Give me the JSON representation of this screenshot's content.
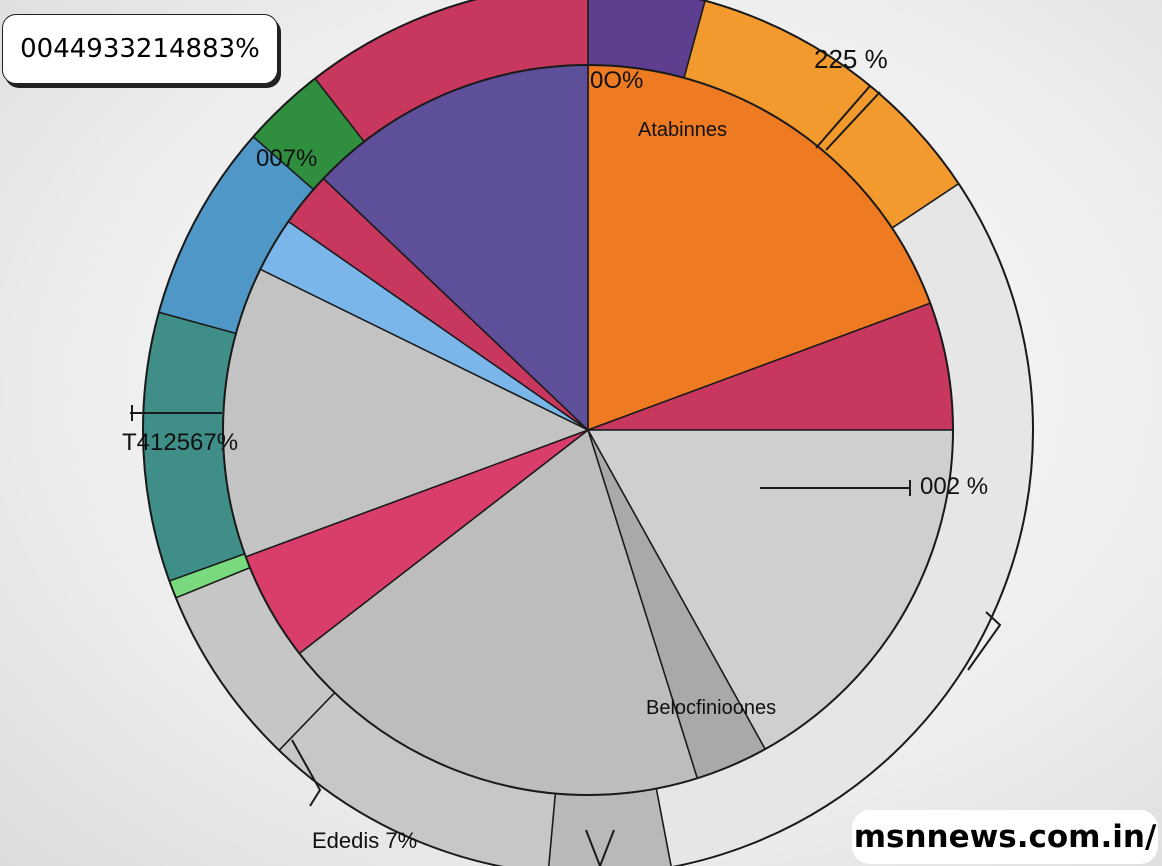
{
  "badge_text": "0044933214883%",
  "watermark": "msnnews.com.in/",
  "chart_data": {
    "type": "pie",
    "title": "",
    "rings": [
      {
        "name": "outer",
        "slices": [
          {
            "value": 4.6,
            "color": "#5e3f8f"
          },
          {
            "value": 12.4,
            "color": "#f29a2e"
          },
          {
            "value": 34.0,
            "color": "#e6e6e6"
          },
          {
            "value": 4.8,
            "color": "#b9b9b9"
          },
          {
            "value": 11.7,
            "color": "#c7c7c7"
          },
          {
            "value": 7.2,
            "color": "#c6c6c6"
          },
          {
            "value": 0.7,
            "color": "#79d97e"
          },
          {
            "value": 10.6,
            "color": "#3f8f88"
          },
          {
            "value": 7.8,
            "color": "#4f97c6"
          },
          {
            "value": 3.3,
            "color": "#2f8f3f"
          },
          {
            "value": 11.4,
            "color": "#c8375e"
          }
        ]
      },
      {
        "name": "inner",
        "slices": [
          {
            "value": 2.4,
            "color": "#ee7a22"
          },
          {
            "value": 0.7,
            "color": "#c8375e"
          },
          {
            "value": 2.1,
            "color": "#cfcfcf"
          },
          {
            "value": 0.4,
            "color": "#a9a9a9"
          },
          {
            "value": 2.4,
            "color": "#bdbdbd"
          },
          {
            "value": 0.6,
            "color": "#d93d6a"
          },
          {
            "value": 1.6,
            "color": "#c3c3c3"
          },
          {
            "value": 0.3,
            "color": "#7ab6ea"
          },
          {
            "value": 0.3,
            "color": "#c8375e"
          },
          {
            "value": 1.6,
            "color": "#5e4f9a"
          }
        ]
      }
    ],
    "labels": [
      {
        "text": "0O%"
      },
      {
        "text": "Atabinnes"
      },
      {
        "text": "225 %"
      },
      {
        "text": "007%"
      },
      {
        "text": "T412567%"
      },
      {
        "text": "002 %"
      },
      {
        "text": "Belocfinioones"
      },
      {
        "text": "Ededis 7%"
      }
    ]
  }
}
